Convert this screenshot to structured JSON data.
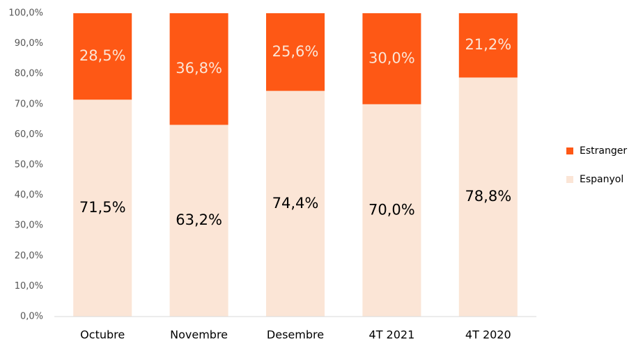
{
  "chart_data": {
    "type": "stacked_bar",
    "categories": [
      "Octubre",
      "Novembre",
      "Desembre",
      "4T 2021",
      "4T 2020"
    ],
    "series": [
      {
        "name": "Espanyol",
        "color": "#fbe5d6",
        "label_color": "#000000",
        "values": [
          71.5,
          63.2,
          74.4,
          70.0,
          78.8
        ],
        "value_labels": [
          "71,5%",
          "63,2%",
          "74,4%",
          "70,0%",
          "78,8%"
        ]
      },
      {
        "name": "Estranger",
        "color": "#fe5815",
        "label_color": "#fbe5d6",
        "values": [
          28.5,
          36.8,
          25.6,
          30.0,
          21.2
        ],
        "value_labels": [
          "28,5%",
          "36,8%",
          "25,6%",
          "30,0%",
          "21,2%"
        ]
      }
    ],
    "ylim": [
      0,
      100
    ],
    "yticks": [
      {
        "value": 0,
        "label": "0,0%"
      },
      {
        "value": 10,
        "label": "10,0%"
      },
      {
        "value": 20,
        "label": "20,0%"
      },
      {
        "value": 30,
        "label": "30,0%"
      },
      {
        "value": 40,
        "label": "40,0%"
      },
      {
        "value": 50,
        "label": "50,0%"
      },
      {
        "value": 60,
        "label": "60,0%"
      },
      {
        "value": 70,
        "label": "70,0%"
      },
      {
        "value": 80,
        "label": "80,0%"
      },
      {
        "value": 90,
        "label": "90,0%"
      },
      {
        "value": 100,
        "label": "100,0%"
      }
    ],
    "grid": false,
    "legend": "right"
  }
}
